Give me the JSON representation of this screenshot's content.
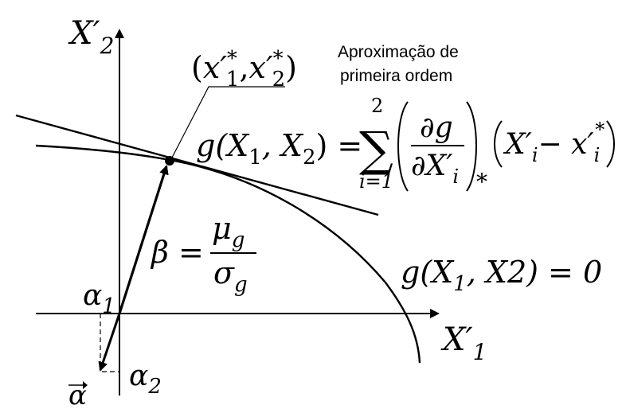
{
  "axes": {
    "vertical_label": {
      "base": "X",
      "prime": "′",
      "sub": "2"
    },
    "horizontal_label": {
      "base": "X",
      "prime": "′",
      "sub": "1"
    }
  },
  "design_point": {
    "open": "(",
    "x1": {
      "base": "x",
      "prime": "′",
      "sup": "*",
      "sub": "1"
    },
    "comma": ",",
    "x2": {
      "base": "x",
      "prime": "′",
      "sup": "*",
      "sub": "2"
    },
    "close": ")"
  },
  "annotation": {
    "line1": "Aproximação de",
    "line2": "primeira ordem"
  },
  "first_order_equation": {
    "lhs": "g(X",
    "lhs_sub1": "1",
    "lhs_mid": ", X",
    "lhs_sub2": "2",
    "lhs_close": ") =",
    "sum_upper": "2",
    "sum_symbol": "∑",
    "sum_lower": "i=1",
    "numerator": "∂g",
    "denominator": "∂X′",
    "denominator_sub": "i",
    "eval_sub": "*",
    "term_base": "X′",
    "term_sub": "i",
    "term_minus": "− x′",
    "term_sub2": "i",
    "term_sup": "*"
  },
  "beta_equation": {
    "lhs": "β =",
    "numerator": "μ",
    "numerator_sub": "g",
    "denominator": "σ",
    "denominator_sub": "g"
  },
  "limit_state": {
    "text": "g(X",
    "sub1": "1",
    "rest": ", X2) = 0"
  },
  "direction_cosines": {
    "alpha1": {
      "base": "α",
      "sub": "1"
    },
    "alpha2": {
      "base": "α",
      "sub": "2"
    },
    "alpha_vector": "α"
  }
}
